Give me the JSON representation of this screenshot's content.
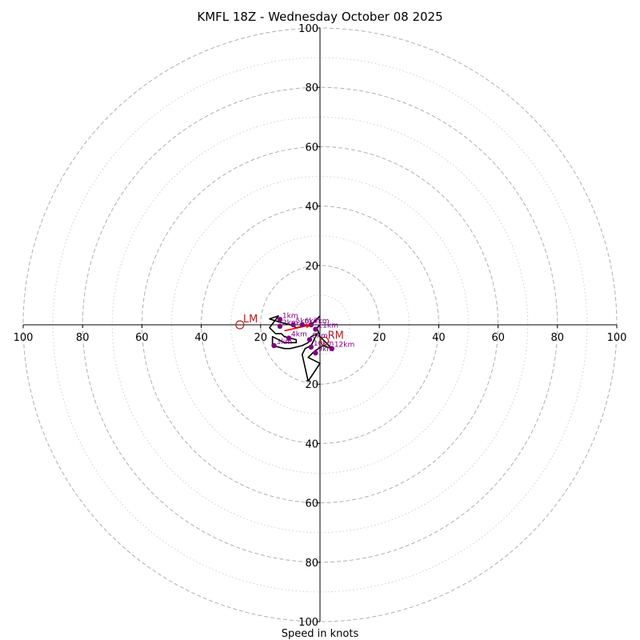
{
  "chart_data": {
    "type": "hodograph",
    "title": "KMFL 18Z - Wednesday October 08 2025",
    "xlabel": "Speed in knots",
    "units": "knots",
    "max_speed": 100,
    "ring_major": [
      20,
      40,
      60,
      80,
      100
    ],
    "ring_minor": [
      10,
      30,
      50,
      70,
      90
    ],
    "x_tick_labels": [
      "100",
      "80",
      "60",
      "40",
      "20",
      "20",
      "40",
      "60",
      "80",
      "100"
    ],
    "x_tick_values": [
      -100,
      -80,
      -60,
      -40,
      -20,
      20,
      40,
      60,
      80,
      100
    ],
    "y_tick_labels": [
      "100",
      "80",
      "60",
      "40",
      "20",
      "20",
      "40",
      "60",
      "80",
      "100"
    ],
    "y_tick_values": [
      100,
      80,
      60,
      40,
      20,
      -20,
      -40,
      -60,
      -80,
      -100
    ],
    "wind_trace": [
      [
        0,
        3
      ],
      [
        -3,
        0
      ],
      [
        -8,
        -1
      ],
      [
        -10,
        0
      ],
      [
        -14,
        1
      ],
      [
        -17,
        2
      ],
      [
        -14,
        3
      ],
      [
        -17,
        -1
      ],
      [
        -15,
        -3
      ],
      [
        -13,
        -3
      ],
      [
        -12,
        -4
      ],
      [
        -8,
        -5
      ],
      [
        -8,
        -6
      ],
      [
        -12,
        -6
      ],
      [
        -16,
        -4
      ],
      [
        -16,
        -7
      ],
      [
        -12,
        -8
      ],
      [
        -10,
        -8
      ],
      [
        -6,
        -7
      ],
      [
        -4,
        -6
      ],
      [
        -3,
        -4
      ],
      [
        -1,
        -3
      ],
      [
        -2,
        -5
      ],
      [
        -3,
        -7
      ],
      [
        -5,
        -8
      ],
      [
        -6,
        -10
      ],
      [
        -4,
        -19
      ],
      [
        0,
        -13
      ],
      [
        -4,
        -11
      ],
      [
        -2,
        -9
      ],
      [
        1,
        -7
      ],
      [
        4,
        -8
      ],
      [
        0,
        -4
      ],
      [
        -1,
        -1
      ],
      [
        0,
        0
      ]
    ],
    "height_markers": [
      {
        "label": "1km",
        "u": -13.5,
        "v": 1.8
      },
      {
        "label": "2km",
        "u": -13.5,
        "v": -0.5
      },
      {
        "label": "3km",
        "u": -15.5,
        "v": -7.0
      },
      {
        "label": "4km",
        "u": -10.5,
        "v": -4.5
      },
      {
        "label": "5km",
        "u": -9.0,
        "v": 0.0
      },
      {
        "label": "6km",
        "u": -6.0,
        "v": 0.0
      },
      {
        "label": "7km",
        "u": -3.0,
        "v": 0.0
      },
      {
        "label": "8km",
        "u": -3.5,
        "v": -5.0
      },
      {
        "label": "9km",
        "u": -1.5,
        "v": -9.5
      },
      {
        "label": "10km",
        "u": -3.0,
        "v": -7.5
      },
      {
        "label": "11km",
        "u": -1.5,
        "v": -1.5
      },
      {
        "label": "12km",
        "u": 4.0,
        "v": -8.0
      }
    ],
    "storm_motion": [
      {
        "label": "LM",
        "u": -27,
        "v": 0
      },
      {
        "label": "RM",
        "u": 1.5,
        "v": -5.5
      }
    ],
    "mean_wind_arrow": {
      "from": [
        -12,
        -2
      ],
      "to": [
        -3,
        0
      ]
    },
    "colors": {
      "trace": "#000000",
      "markers": "#800080",
      "storm_motion": "#b22222",
      "arrow": "#ff0000",
      "grid": "#b0b0b0"
    }
  }
}
